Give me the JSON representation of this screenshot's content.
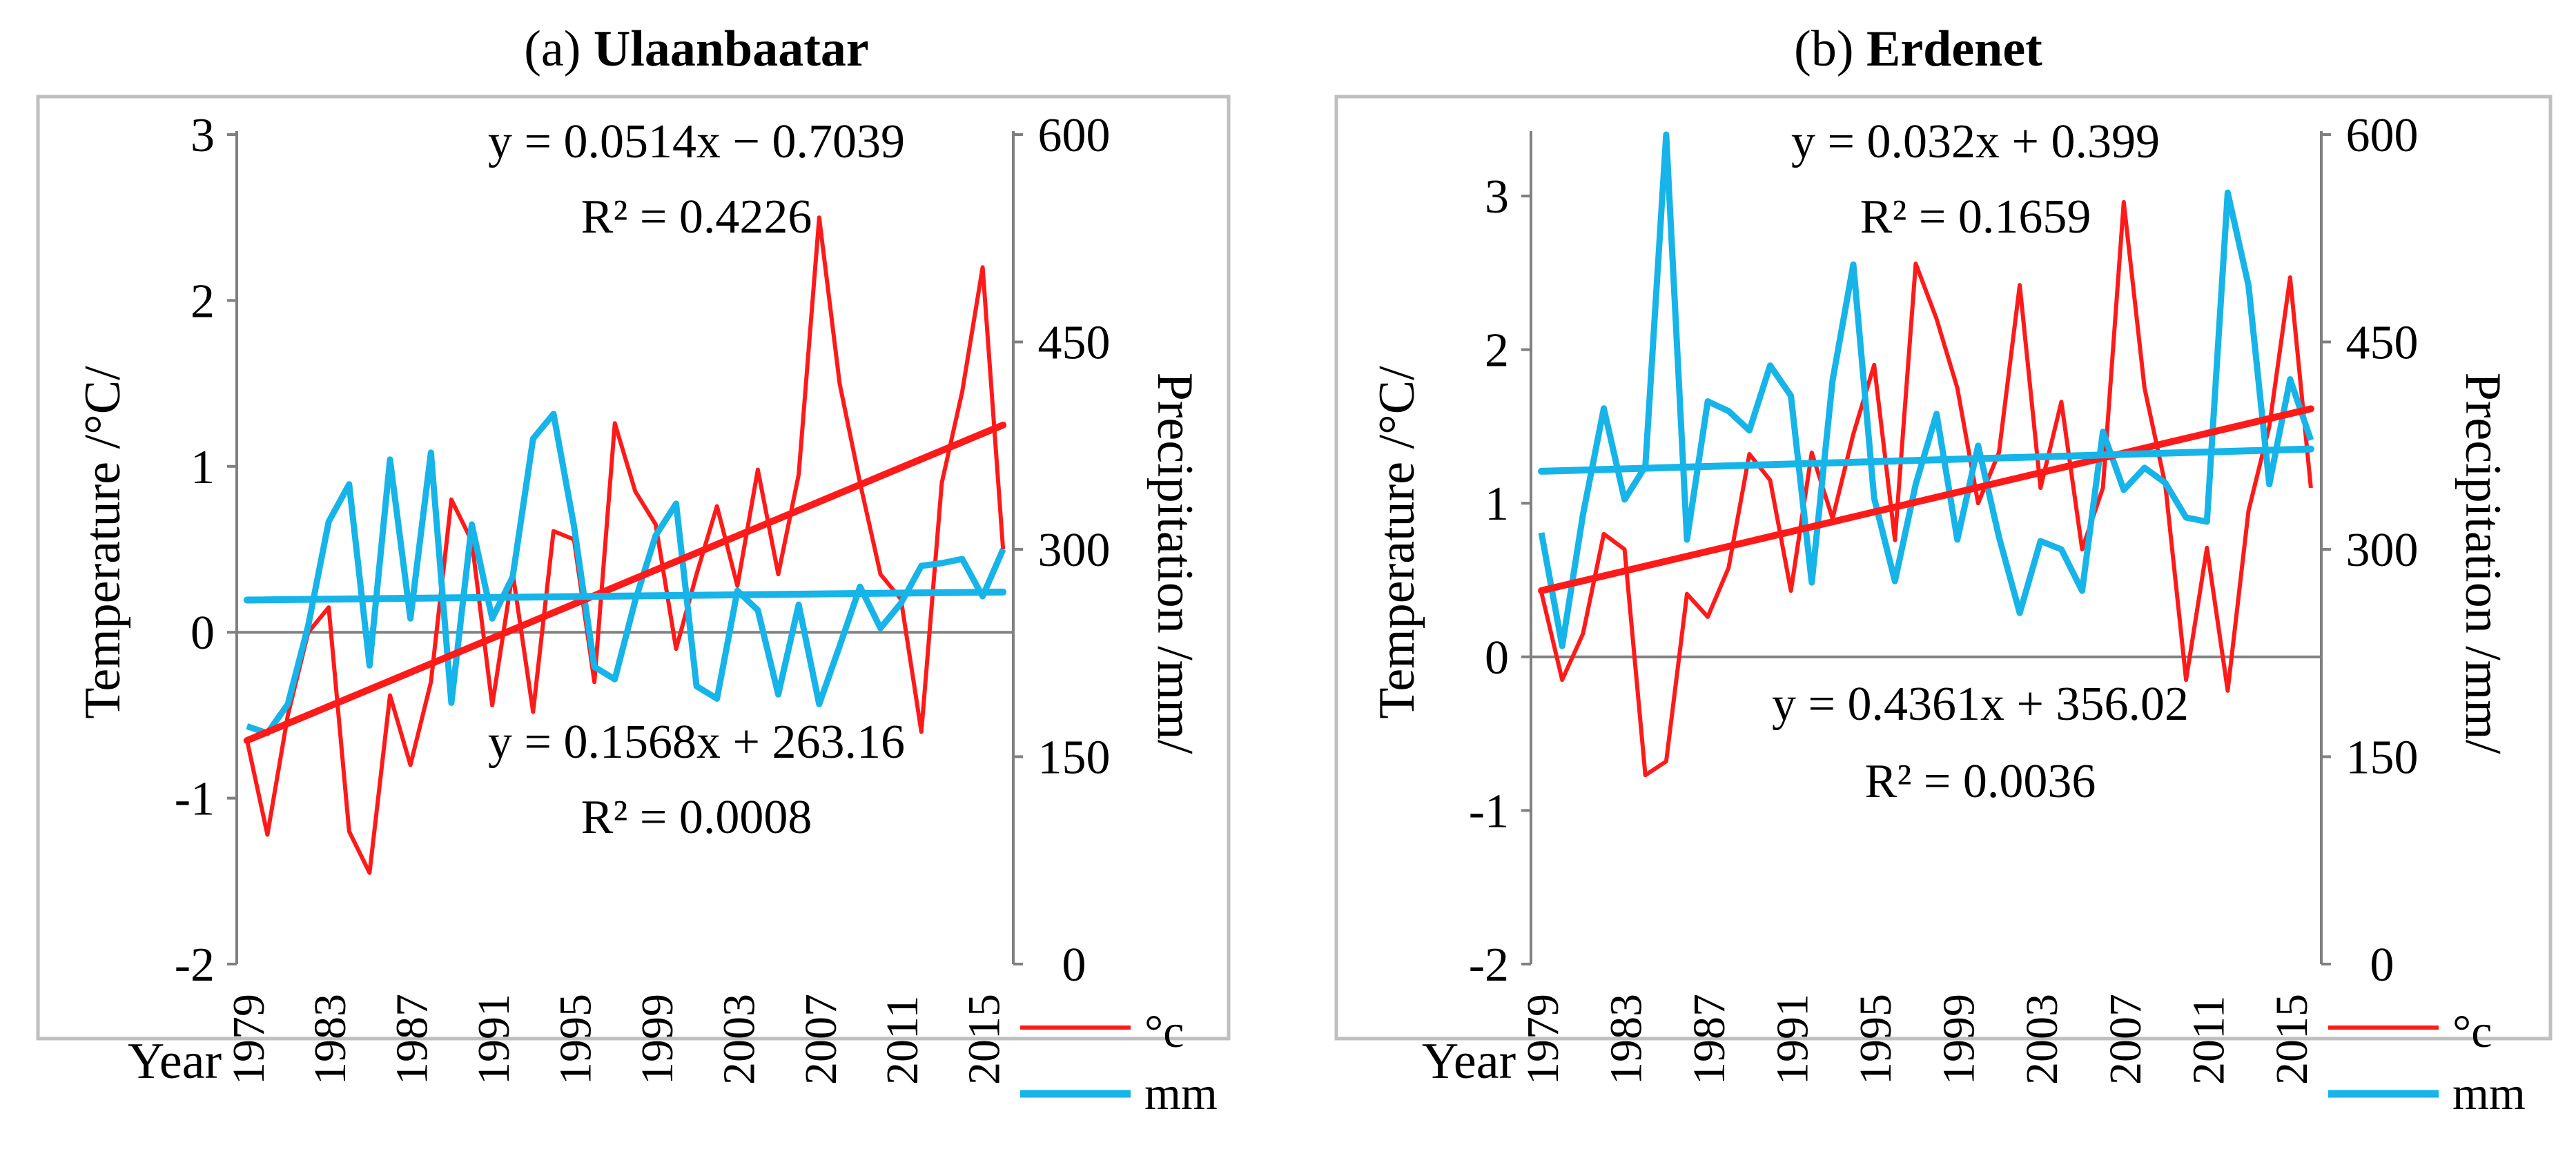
{
  "colors": {
    "temperature": "#ff1a1a",
    "precipitation": "#16b4e8",
    "axis": "#808080",
    "frame": "#bfbfbf"
  },
  "chart_data": [
    {
      "type": "line",
      "panel_label": "(a)",
      "title": "Ulaanbaatar",
      "x_axis_label": "Year",
      "ylabel_left": "Temperature /°C/",
      "ylabel_right": "Precipitation /mm/",
      "ylim_left": [
        -2,
        3
      ],
      "yticks_left": [
        "-2",
        "-1",
        "0",
        "1",
        "2",
        "3"
      ],
      "ylim_right": [
        0,
        600
      ],
      "yticks_right": [
        "0",
        "150",
        "300",
        "450",
        "600"
      ],
      "x_years": [
        1979,
        1980,
        1981,
        1982,
        1983,
        1984,
        1985,
        1986,
        1987,
        1988,
        1989,
        1990,
        1991,
        1992,
        1993,
        1994,
        1995,
        1996,
        1997,
        1998,
        1999,
        2000,
        2001,
        2002,
        2003,
        2004,
        2005,
        2006,
        2007,
        2008,
        2009,
        2010,
        2011,
        2012,
        2013,
        2014,
        2015,
        2016
      ],
      "xtick_labels": [
        "1979",
        "1983",
        "1987",
        "1991",
        "1995",
        "1999",
        "2003",
        "2007",
        "2011",
        "2015"
      ],
      "series": [
        {
          "name": "°c",
          "axis": "left",
          "values": [
            -0.65,
            -1.22,
            -0.5,
            0.0,
            0.15,
            -1.2,
            -1.45,
            -0.38,
            -0.8,
            -0.3,
            0.8,
            0.55,
            -0.44,
            0.36,
            -0.48,
            0.61,
            0.56,
            -0.3,
            1.26,
            0.85,
            0.65,
            -0.1,
            0.35,
            0.76,
            0.28,
            0.98,
            0.35,
            0.95,
            2.5,
            1.5,
            0.9,
            0.35,
            0.2,
            -0.6,
            0.9,
            1.45,
            2.2,
            0.5
          ]
        },
        {
          "name": "mm",
          "axis": "right",
          "values": [
            172,
            167,
            188,
            245,
            320,
            347,
            216,
            365,
            250,
            370,
            189,
            318,
            250,
            280,
            380,
            398,
            317,
            215,
            206,
            263,
            310,
            333,
            201,
            192,
            270,
            256,
            195,
            260,
            188,
            230,
            273,
            243,
            261,
            288,
            290,
            293,
            266,
            300
          ]
        }
      ],
      "trendlines": [
        {
          "series": "°c",
          "equation": "y = 0.0514x − 0.7039",
          "r2": "R² = 0.4226",
          "slope": 0.0514,
          "intercept": -0.7039
        },
        {
          "series": "mm",
          "equation": "y = 0.1568x + 263.16",
          "r2": "R² = 0.0008",
          "slope": 0.1568,
          "intercept": 263.16
        }
      ],
      "legend": [
        "°c",
        "mm"
      ]
    },
    {
      "type": "line",
      "panel_label": "(b)",
      "title": "Erdenet",
      "x_axis_label": "Year",
      "ylabel_left": "Temperature /°C/",
      "ylabel_right": "Precipitation /mm/",
      "ylim_left": [
        -2,
        3.4
      ],
      "yticks_left": [
        "-2",
        "-1",
        "0",
        "1",
        "2",
        "3"
      ],
      "ylim_right": [
        0,
        600
      ],
      "yticks_right": [
        "0",
        "150",
        "300",
        "450",
        "600"
      ],
      "x_years": [
        1979,
        1980,
        1981,
        1982,
        1983,
        1984,
        1985,
        1986,
        1987,
        1988,
        1989,
        1990,
        1991,
        1992,
        1993,
        1994,
        1995,
        1996,
        1997,
        1998,
        1999,
        2000,
        2001,
        2002,
        2003,
        2004,
        2005,
        2006,
        2007,
        2008,
        2009,
        2010,
        2011,
        2012,
        2013,
        2014,
        2015,
        2016
      ],
      "xtick_labels": [
        "1979",
        "1983",
        "1987",
        "1991",
        "1995",
        "1999",
        "2003",
        "2007",
        "2011",
        "2015"
      ],
      "series": [
        {
          "name": "°c",
          "axis": "left",
          "values": [
            0.42,
            -0.15,
            0.15,
            0.8,
            0.7,
            -0.77,
            -0.68,
            0.41,
            0.26,
            0.58,
            1.32,
            1.15,
            0.43,
            1.33,
            0.9,
            1.45,
            1.9,
            0.76,
            2.56,
            2.2,
            1.75,
            1.0,
            1.33,
            2.42,
            1.1,
            1.66,
            0.7,
            1.1,
            2.96,
            1.75,
            1.12,
            -0.15,
            0.71,
            -0.22,
            0.95,
            1.5,
            2.47,
            1.1
          ]
        },
        {
          "name": "mm",
          "axis": "right",
          "values": [
            312,
            230,
            325,
            402,
            336,
            360,
            600,
            307,
            407,
            400,
            386,
            433,
            411,
            276,
            422,
            506,
            337,
            277,
            347,
            398,
            307,
            375,
            309,
            254,
            306,
            300,
            270,
            385,
            343,
            359,
            348,
            323,
            320,
            558,
            491,
            347,
            423,
            379
          ]
        }
      ],
      "trendlines": [
        {
          "series": "°c",
          "equation": "y = 0.032x + 0.399",
          "r2": "R² = 0.1659",
          "slope": 0.032,
          "intercept": 0.399
        },
        {
          "series": "mm",
          "equation": "y = 0.4361x + 356.02",
          "r2": "R² = 0.0036",
          "slope": 0.4361,
          "intercept": 356.02
        }
      ],
      "legend": [
        "°c",
        "mm"
      ]
    }
  ]
}
